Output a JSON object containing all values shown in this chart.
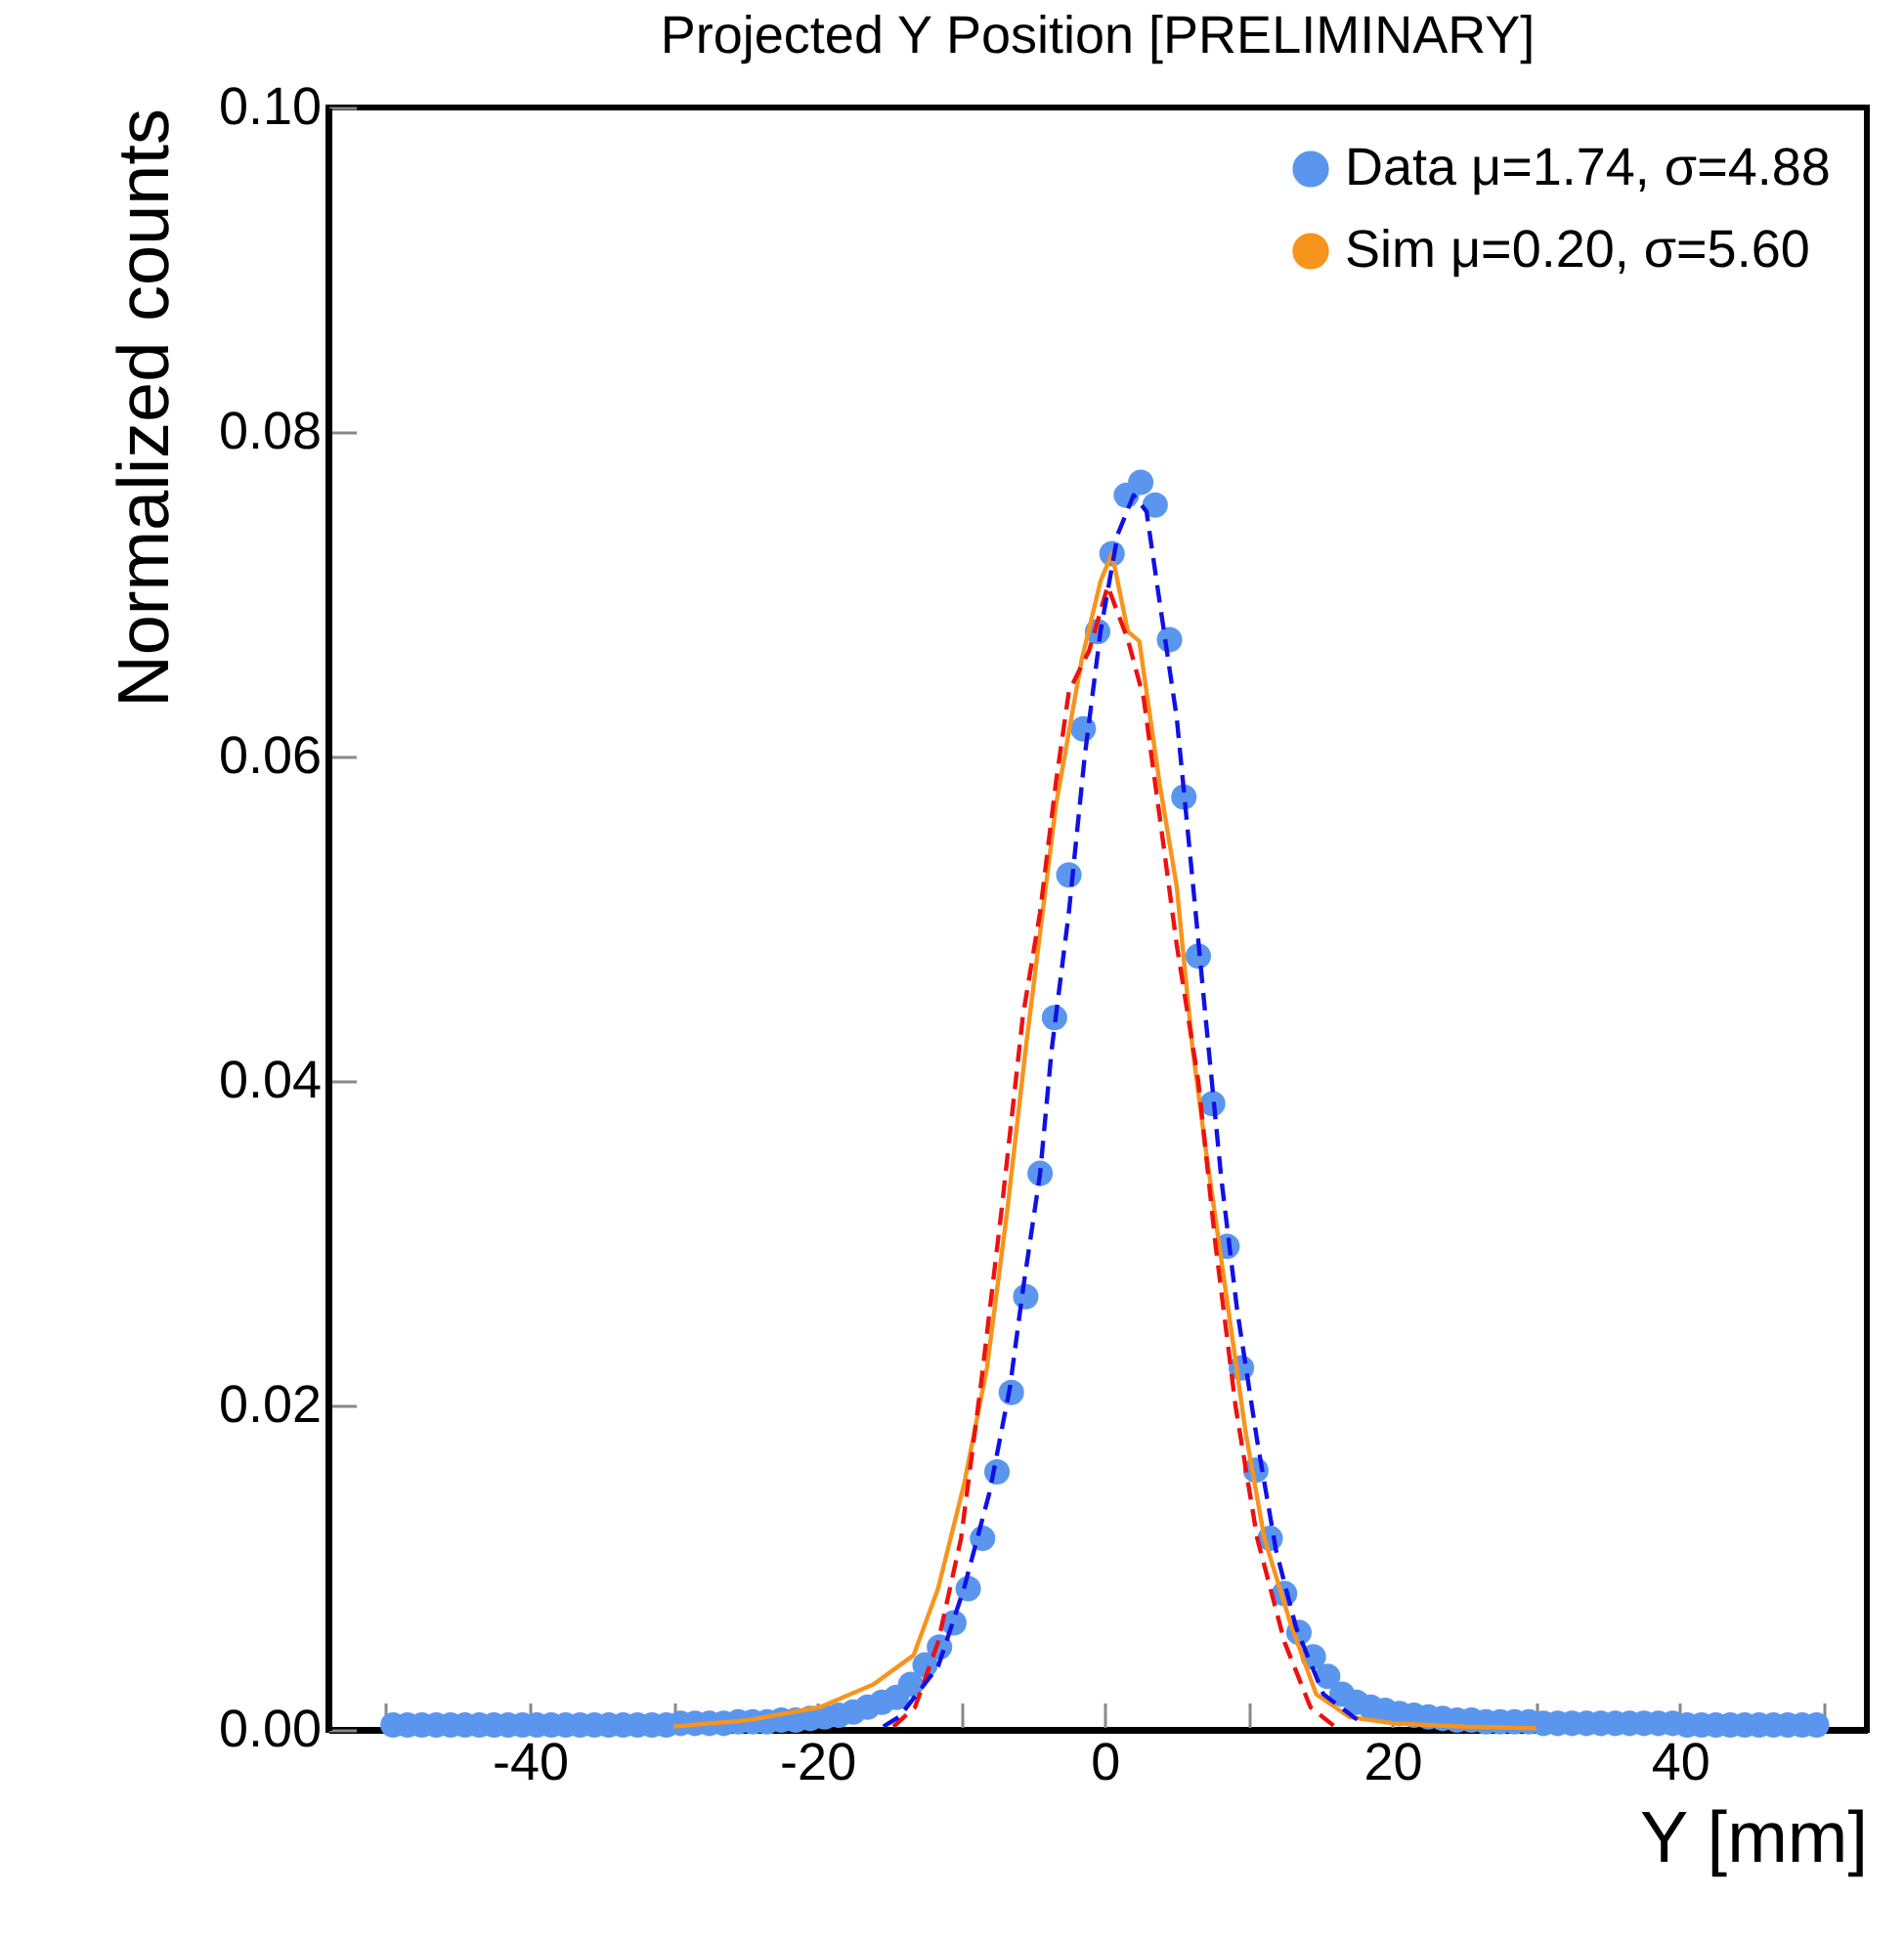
{
  "chart_data": {
    "type": "scatter",
    "title": "Projected Y Position [PRELIMINARY]",
    "xlabel": "Y [mm]",
    "ylabel": "Normalized counts",
    "xlim": [
      -54,
      53
    ],
    "ylim": [
      0,
      0.1
    ],
    "xticks": [
      {
        "value": -50,
        "label": null
      },
      -40,
      {
        "value": -30,
        "label": null
      },
      -20,
      {
        "value": -10,
        "label": null
      },
      0,
      {
        "value": 10,
        "label": null
      },
      20,
      {
        "value": 30,
        "label": null
      },
      40,
      {
        "value": 50,
        "label": null
      }
    ],
    "yticks": [
      {
        "value": 0,
        "label": "0.00"
      },
      {
        "value": 0.02,
        "label": "0.02"
      },
      {
        "value": 0.04,
        "label": "0.04"
      },
      {
        "value": 0.06,
        "label": "0.06"
      },
      {
        "value": 0.08,
        "label": "0.08"
      },
      {
        "value": 0.1,
        "label": "0.10"
      }
    ],
    "grid": false,
    "legend": "top right",
    "series": [
      {
        "name": "Data μ=1.74, σ=4.88",
        "marker": "circle",
        "color": "#5b96ee",
        "x": [
          -49.5,
          -48.5,
          -47.5,
          -46.5,
          -45.5,
          -44.5,
          -43.5,
          -42.5,
          -41.5,
          -40.5,
          -39.5,
          -38.5,
          -37.5,
          -36.5,
          -35.5,
          -34.5,
          -33.5,
          -32.5,
          -31.5,
          -30.5,
          -29.5,
          -28.5,
          -27.5,
          -26.5,
          -25.5,
          -24.5,
          -23.5,
          -22.5,
          -21.5,
          -20.5,
          -19.5,
          -18.5,
          -17.5,
          -16.5,
          -15.5,
          -14.5,
          -13.5,
          -12.5,
          -11.5,
          -10.5,
          -9.5,
          -8.5,
          -7.5,
          -6.5,
          -5.5,
          -4.5,
          -3.5,
          -2.5,
          -1.5,
          -0.5,
          0.5,
          1.5,
          2.5,
          3.5,
          4.5,
          5.5,
          6.5,
          7.5,
          8.5,
          9.5,
          10.5,
          11.5,
          12.5,
          13.5,
          14.5,
          15.5,
          16.5,
          17.5,
          18.5,
          19.5,
          20.5,
          21.5,
          22.5,
          23.5,
          24.5,
          25.5,
          26.5,
          27.5,
          28.5,
          29.5,
          30.5,
          31.5,
          32.5,
          33.5,
          34.5,
          35.5,
          36.5,
          37.5,
          38.5,
          39.5,
          40.5,
          41.5,
          42.5,
          43.5,
          44.5,
          45.5,
          46.5,
          47.5,
          48.5,
          49.5
        ],
        "values": [
          0.0003,
          0.0003,
          0.0003,
          0.0003,
          0.0003,
          0.0003,
          0.0003,
          0.0003,
          0.0003,
          0.0003,
          0.0003,
          0.0003,
          0.0003,
          0.0003,
          0.0003,
          0.0003,
          0.0003,
          0.0003,
          0.0003,
          0.0003,
          0.0004,
          0.0004,
          0.0004,
          0.0004,
          0.0005,
          0.0005,
          0.0005,
          0.0006,
          0.0006,
          0.0007,
          0.0008,
          0.0009,
          0.0011,
          0.0014,
          0.0017,
          0.002,
          0.0028,
          0.004,
          0.0051,
          0.0066,
          0.0087,
          0.0118,
          0.0159,
          0.0208,
          0.0267,
          0.0343,
          0.0439,
          0.0527,
          0.0617,
          0.0677,
          0.0725,
          0.0761,
          0.0769,
          0.0755,
          0.0672,
          0.0575,
          0.0477,
          0.0386,
          0.0298,
          0.0223,
          0.016,
          0.0118,
          0.0084,
          0.006,
          0.0045,
          0.0033,
          0.0022,
          0.0017,
          0.0014,
          0.0012,
          0.001,
          0.0009,
          0.0008,
          0.0007,
          0.0006,
          0.0006,
          0.0005,
          0.0005,
          0.0005,
          0.0005,
          0.0004,
          0.0004,
          0.0004,
          0.0004,
          0.0004,
          0.0004,
          0.0004,
          0.0004,
          0.0004,
          0.0004,
          0.0003,
          0.0003,
          0.0003,
          0.0003,
          0.0003,
          0.0003,
          0.0003,
          0.0003,
          0.0003,
          0.0003
        ]
      },
      {
        "name": "Sim μ=0.20, σ=5.60",
        "type": "line",
        "color": "#f7941d",
        "x": [
          -30,
          -24.8,
          -19.8,
          -16.1,
          -13.3,
          -11.6,
          -9.8,
          -8.2,
          -6.8,
          -5.5,
          -3.4,
          -1.6,
          -0.3,
          0.5,
          1.6,
          2.4,
          3.8,
          5.0,
          6.1,
          7.0,
          8.4,
          9.8,
          11.1,
          12.9,
          14.7,
          17,
          20.1,
          25,
          30
        ],
        "values": [
          0.0002,
          0.0006,
          0.0014,
          0.0028,
          0.0046,
          0.0087,
          0.0151,
          0.0223,
          0.0319,
          0.042,
          0.057,
          0.066,
          0.0708,
          0.0725,
          0.0677,
          0.0671,
          0.0584,
          0.052,
          0.042,
          0.0359,
          0.0271,
          0.0183,
          0.0118,
          0.0066,
          0.0022,
          0.0008,
          0.0004,
          0.0002,
          0.0001
        ]
      },
      {
        "type": "line",
        "line_style": "dashed",
        "color": "#ee1111",
        "x": [
          -14.7,
          -13.2,
          -11.6,
          -10,
          -8.6,
          -7.2,
          -5.7,
          -4.5,
          -3.4,
          -2.5,
          -1.1,
          0.2,
          1.6,
          2.7,
          3.8,
          5.0,
          6.5,
          7.7,
          9.1,
          10.6,
          12.5,
          14.3,
          16
        ],
        "values": [
          0.0002,
          0.0014,
          0.0054,
          0.0118,
          0.0214,
          0.0319,
          0.044,
          0.0504,
          0.0584,
          0.064,
          0.0665,
          0.0705,
          0.0672,
          0.0636,
          0.0564,
          0.0484,
          0.04,
          0.0299,
          0.0199,
          0.0118,
          0.0054,
          0.0014,
          0.0002
        ]
      },
      {
        "type": "line",
        "line_style": "dashed",
        "color": "#1111e6",
        "x": [
          -15.4,
          -14.3,
          -11.6,
          -9.8,
          -8,
          -6.6,
          -5.7,
          -4.5,
          -3.7,
          -2.5,
          -1.4,
          -0.3,
          0.9,
          2.0,
          2.9,
          3.8,
          5.0,
          6.1,
          7.0,
          8.1,
          9.2,
          10.6,
          11.9,
          13.3,
          15.2,
          17.9
        ],
        "values": [
          0.0002,
          0.0008,
          0.0039,
          0.0087,
          0.0147,
          0.0211,
          0.0271,
          0.0343,
          0.0419,
          0.0504,
          0.06,
          0.0677,
          0.0737,
          0.0761,
          0.0751,
          0.0696,
          0.0624,
          0.0524,
          0.044,
          0.034,
          0.0259,
          0.0178,
          0.0111,
          0.0063,
          0.0022,
          0.0004
        ]
      }
    ]
  }
}
